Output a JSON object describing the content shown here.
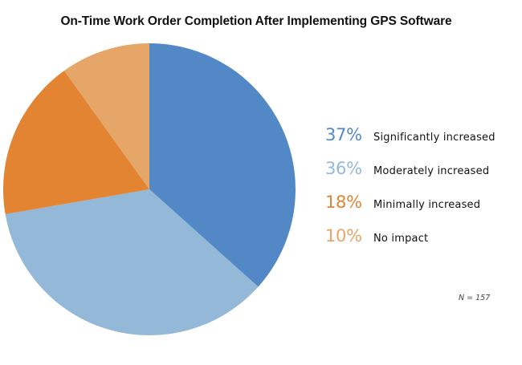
{
  "chart_data": {
    "type": "pie",
    "title": "On-Time Work Order Completion After Implementing GPS Software",
    "slices": [
      {
        "label": "Significantly increased",
        "value": 37,
        "display": "37%",
        "color": "#5388c7"
      },
      {
        "label": "Moderately increased",
        "value": 36,
        "display": "36%",
        "color": "#93b8d8"
      },
      {
        "label": "Minimally increased",
        "value": 18,
        "display": "18%",
        "color": "#e28432"
      },
      {
        "label": "No impact",
        "value": 10,
        "display": "10%",
        "color": "#e6a667"
      }
    ],
    "legend_placement": "right",
    "note": "N = 157"
  }
}
